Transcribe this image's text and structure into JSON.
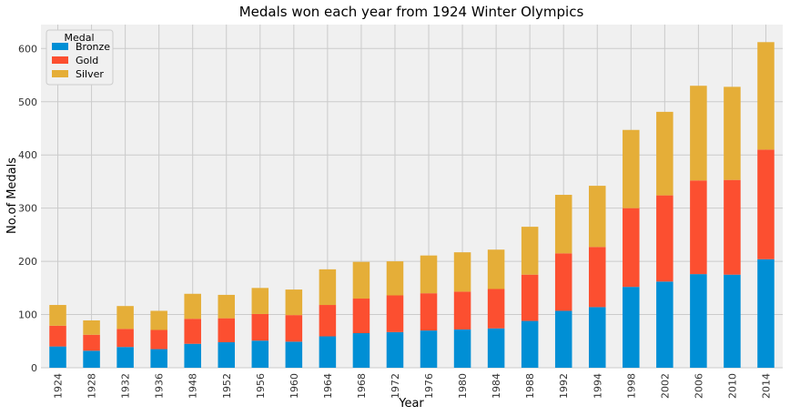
{
  "chart_data": {
    "type": "bar",
    "stacked": true,
    "title": "Medals won each year from 1924 Winter Olympics",
    "xlabel": "Year",
    "ylabel": "No.of Medals",
    "ylim": [
      0,
      645
    ],
    "yticks": [
      0,
      100,
      200,
      300,
      400,
      500,
      600
    ],
    "grid": true,
    "legend": {
      "title": "Medal",
      "placement": "top-left"
    },
    "categories": [
      "1924",
      "1928",
      "1932",
      "1936",
      "1948",
      "1952",
      "1956",
      "1960",
      "1964",
      "1968",
      "1972",
      "1976",
      "1980",
      "1984",
      "1988",
      "1992",
      "1994",
      "1998",
      "2002",
      "2006",
      "2010",
      "2014"
    ],
    "series": [
      {
        "name": "Bronze",
        "color": "#008fd5",
        "values": [
          40,
          32,
          39,
          35,
          45,
          48,
          51,
          49,
          59,
          65,
          67,
          70,
          72,
          74,
          88,
          107,
          114,
          152,
          162,
          176,
          175,
          204
        ]
      },
      {
        "name": "Gold",
        "color": "#fc4f30",
        "values": [
          39,
          30,
          34,
          36,
          47,
          45,
          50,
          50,
          59,
          65,
          69,
          70,
          71,
          74,
          87,
          108,
          113,
          148,
          162,
          176,
          178,
          206
        ]
      },
      {
        "name": "Silver",
        "color": "#e5ae38",
        "values": [
          39,
          27,
          43,
          36,
          47,
          44,
          49,
          48,
          67,
          69,
          64,
          71,
          74,
          74,
          90,
          110,
          115,
          147,
          157,
          178,
          175,
          202
        ]
      }
    ]
  }
}
